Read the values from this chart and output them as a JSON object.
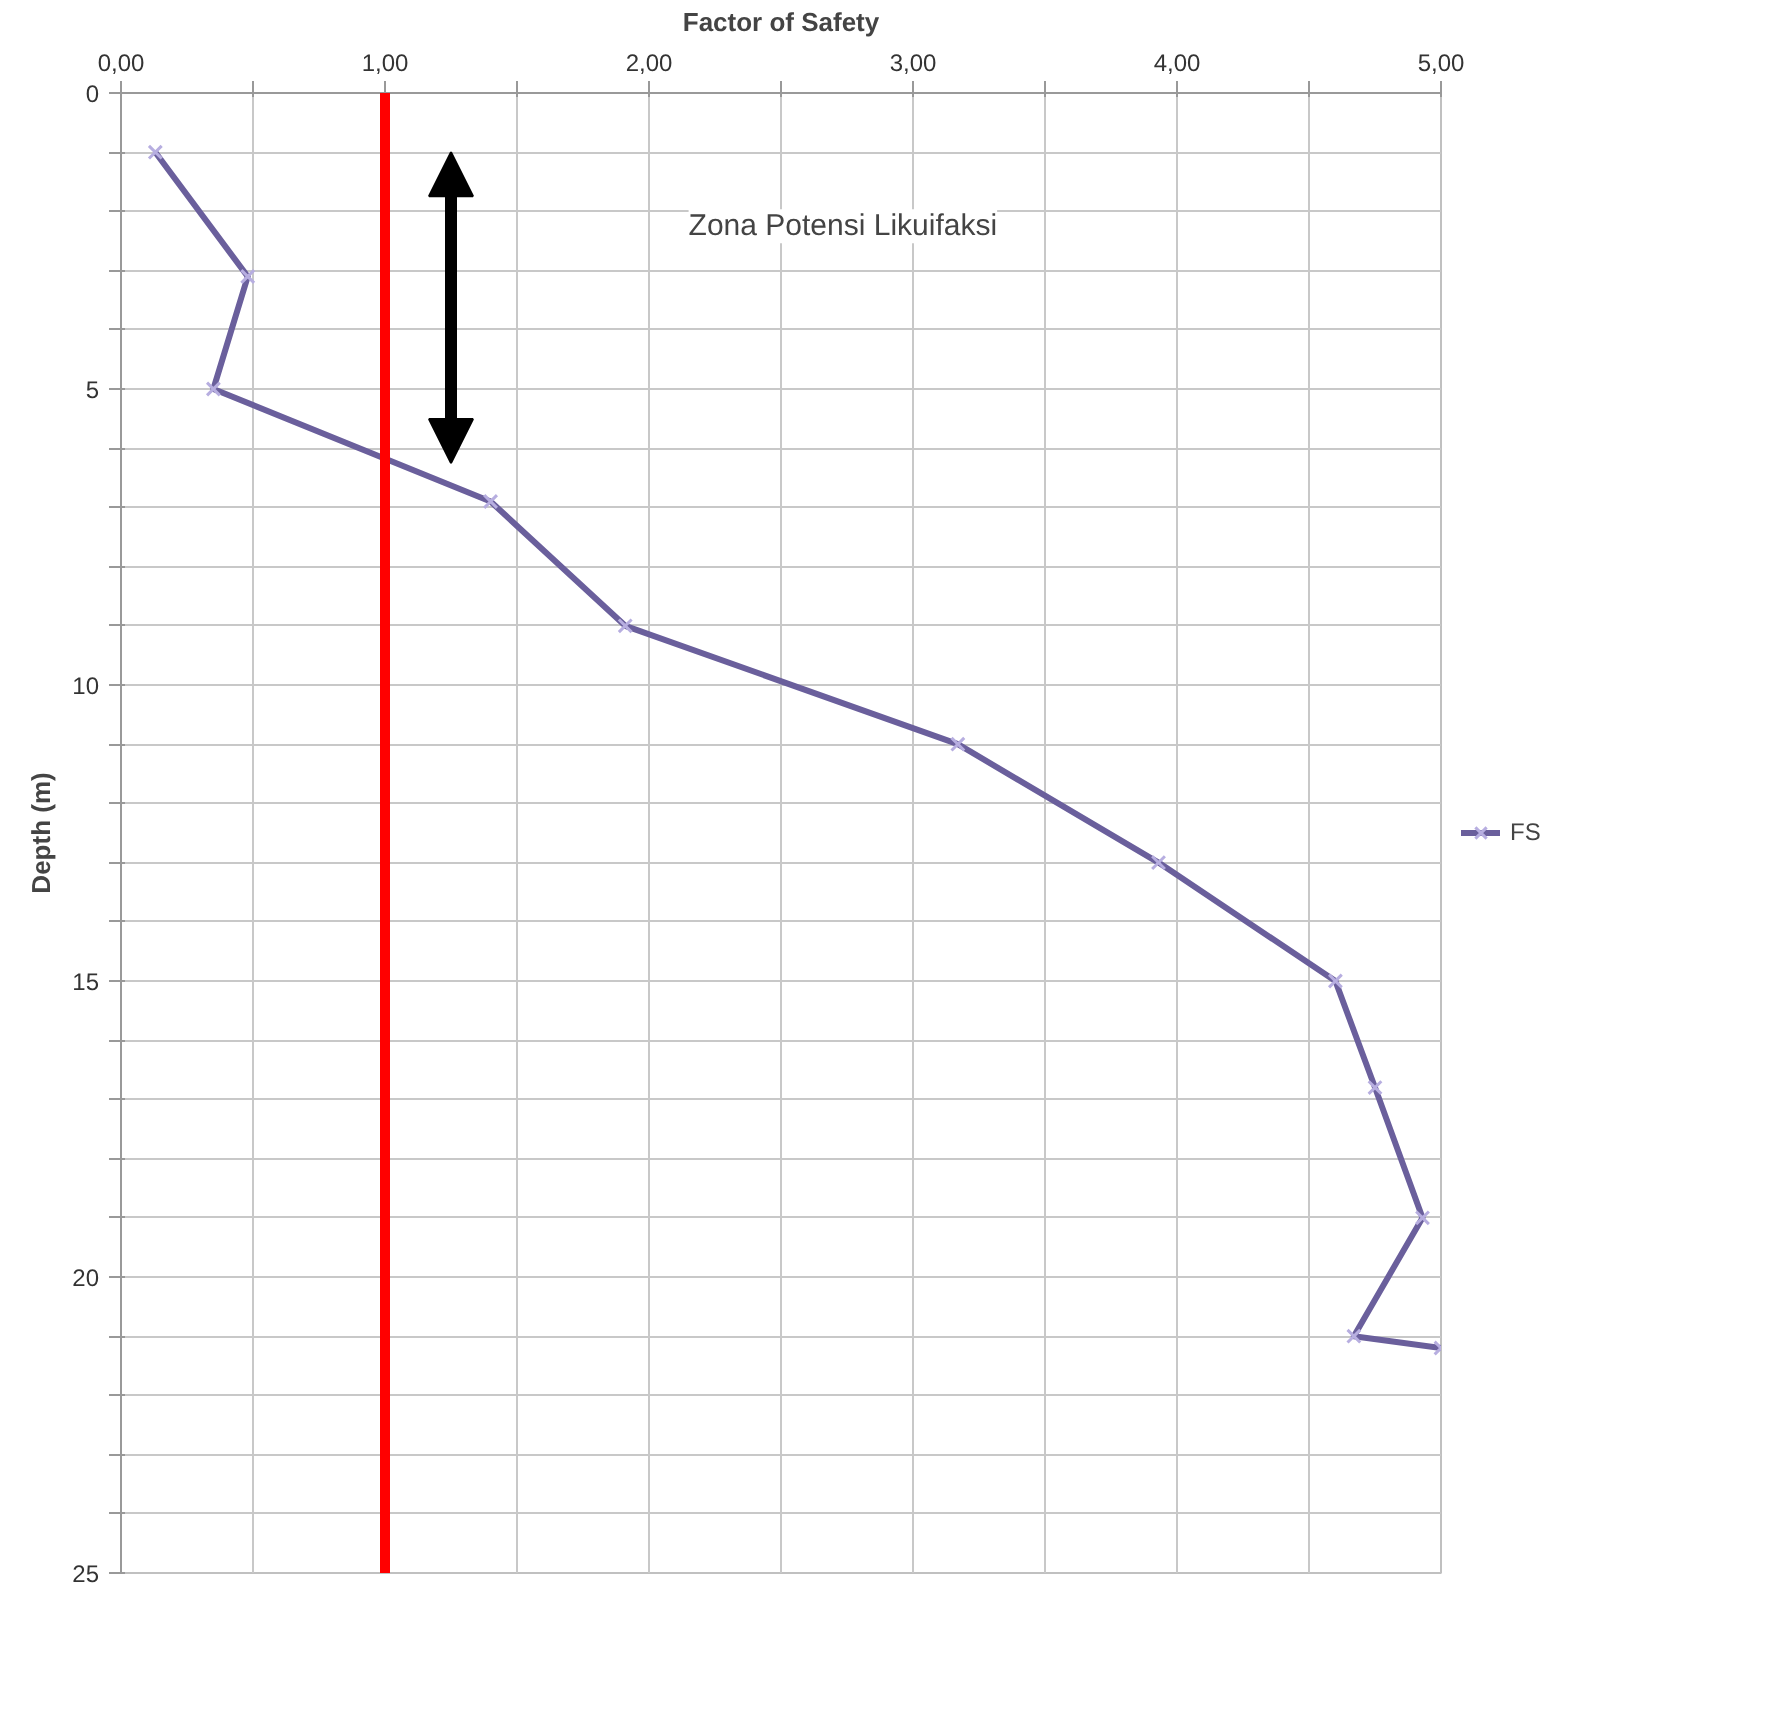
{
  "chart_data": {
    "type": "line",
    "xlabel": "Factor of Safety",
    "ylabel": "Depth (m)",
    "xlim": [
      0,
      5
    ],
    "ylim": [
      25,
      0
    ],
    "xticks": [
      {
        "value": 0,
        "label": "0,00"
      },
      {
        "value": 0.5,
        "label": null
      },
      {
        "value": 1,
        "label": "1,00"
      },
      {
        "value": 1.5,
        "label": null
      },
      {
        "value": 2,
        "label": "2,00"
      },
      {
        "value": 2.5,
        "label": null
      },
      {
        "value": 3,
        "label": "3,00"
      },
      {
        "value": 3.5,
        "label": null
      },
      {
        "value": 4,
        "label": "4,00"
      },
      {
        "value": 4.5,
        "label": null
      },
      {
        "value": 5,
        "label": "5,00"
      }
    ],
    "yticks": [
      0,
      {
        "value": 1,
        "label": null
      },
      {
        "value": 2,
        "label": null
      },
      {
        "value": 3,
        "label": null
      },
      {
        "value": 4,
        "label": null
      },
      5,
      {
        "value": 6,
        "label": null
      },
      {
        "value": 7,
        "label": null
      },
      {
        "value": 8,
        "label": null
      },
      {
        "value": 9,
        "label": null
      },
      10,
      {
        "value": 11,
        "label": null
      },
      {
        "value": 12,
        "label": null
      },
      {
        "value": 13,
        "label": null
      },
      {
        "value": 14,
        "label": null
      },
      15,
      {
        "value": 16,
        "label": null
      },
      {
        "value": 17,
        "label": null
      },
      {
        "value": 18,
        "label": null
      },
      {
        "value": 19,
        "label": null
      },
      20,
      {
        "value": 21,
        "label": null
      },
      {
        "value": 22,
        "label": null
      },
      {
        "value": 23,
        "label": null
      },
      {
        "value": 24,
        "label": null
      },
      25
    ],
    "series": [
      {
        "name": "FS",
        "color": "#6a5f9c",
        "x": [
          0.13,
          0.48,
          0.35,
          1.4,
          1.91,
          3.17,
          3.93,
          4.6,
          4.75,
          4.93,
          4.67,
          5.0
        ],
        "values": [
          1,
          3.1,
          5,
          6.9,
          9,
          11,
          13,
          15,
          16.8,
          19,
          21,
          21.2
        ]
      }
    ],
    "ref_lines": [
      {
        "axis": "x",
        "value": 1,
        "color": "#ff0000"
      }
    ],
    "annotations": [
      "Zona Potensi Likuifaksi"
    ],
    "grid": true,
    "legend": "right",
    "marker": "cross",
    "line_style": "solid"
  }
}
